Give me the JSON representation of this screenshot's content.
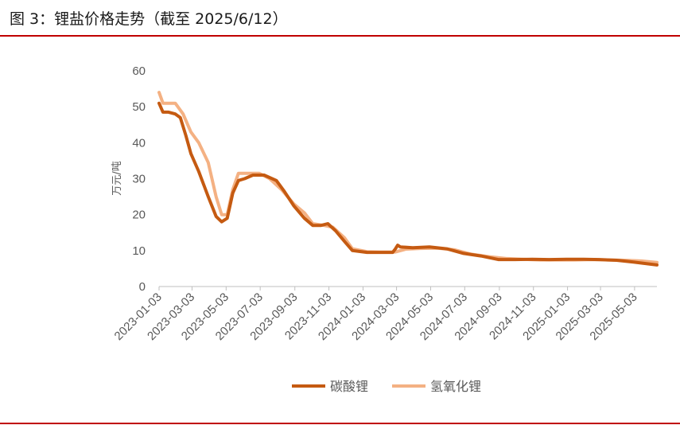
{
  "title": "图 3：锂盐价格走势（截至 2025/6/12）",
  "colors": {
    "accent_rule": "#c00000",
    "lithium_carbonate": "#c55a11",
    "lithium_hydroxide": "#f4b183"
  },
  "chart_data": {
    "type": "line",
    "title": "",
    "xlabel": "",
    "ylabel": "万元/吨",
    "ylim": [
      0,
      60
    ],
    "yticks": [
      0,
      10,
      20,
      30,
      40,
      50,
      60
    ],
    "x_tick_labels": [
      "2023-01-03",
      "2023-03-03",
      "2023-05-03",
      "2023-07-03",
      "2023-09-03",
      "2023-11-03",
      "2024-01-03",
      "2024-03-03",
      "2024-05-03",
      "2024-07-03",
      "2024-09-03",
      "2024-11-03",
      "2025-01-03",
      "2025-03-03",
      "2025-05-03"
    ],
    "x_range": [
      "2023-01-03",
      "2025-06-12"
    ],
    "grid": false,
    "legend_position": "bottom",
    "series": [
      {
        "name": "碳酸锂",
        "color": "#c55a11",
        "points": [
          [
            "2023-01-03",
            51.0
          ],
          [
            "2023-01-10",
            48.5
          ],
          [
            "2023-01-20",
            48.5
          ],
          [
            "2023-02-01",
            48.0
          ],
          [
            "2023-02-10",
            47.0
          ],
          [
            "2023-02-20",
            42.0
          ],
          [
            "2023-03-01",
            37.0
          ],
          [
            "2023-03-15",
            32.0
          ],
          [
            "2023-04-01",
            25.0
          ],
          [
            "2023-04-15",
            19.5
          ],
          [
            "2023-04-25",
            18.0
          ],
          [
            "2023-05-05",
            19.0
          ],
          [
            "2023-05-15",
            26.0
          ],
          [
            "2023-05-25",
            29.5
          ],
          [
            "2023-06-05",
            30.0
          ],
          [
            "2023-06-20",
            31.0
          ],
          [
            "2023-07-10",
            31.0
          ],
          [
            "2023-08-01",
            29.5
          ],
          [
            "2023-08-15",
            26.5
          ],
          [
            "2023-09-01",
            22.5
          ],
          [
            "2023-09-20",
            19.0
          ],
          [
            "2023-10-05",
            17.0
          ],
          [
            "2023-10-20",
            17.0
          ],
          [
            "2023-11-01",
            17.5
          ],
          [
            "2023-11-15",
            15.5
          ],
          [
            "2023-12-01",
            12.5
          ],
          [
            "2023-12-15",
            10.0
          ],
          [
            "2024-01-10",
            9.5
          ],
          [
            "2024-02-01",
            9.5
          ],
          [
            "2024-02-25",
            9.5
          ],
          [
            "2024-03-01",
            10.5
          ],
          [
            "2024-03-05",
            11.5
          ],
          [
            "2024-03-10",
            11.0
          ],
          [
            "2024-04-01",
            10.8
          ],
          [
            "2024-05-01",
            11.0
          ],
          [
            "2024-06-01",
            10.5
          ],
          [
            "2024-07-01",
            9.2
          ],
          [
            "2024-08-01",
            8.5
          ],
          [
            "2024-09-01",
            7.5
          ],
          [
            "2024-10-01",
            7.5
          ],
          [
            "2024-11-01",
            7.6
          ],
          [
            "2024-12-01",
            7.5
          ],
          [
            "2025-01-01",
            7.6
          ],
          [
            "2025-02-01",
            7.6
          ],
          [
            "2025-03-01",
            7.5
          ],
          [
            "2025-04-01",
            7.3
          ],
          [
            "2025-05-01",
            6.8
          ],
          [
            "2025-06-12",
            6.0
          ]
        ]
      },
      {
        "name": "氢氧化锂",
        "color": "#f4b183",
        "points": [
          [
            "2023-01-03",
            54.0
          ],
          [
            "2023-01-10",
            51.0
          ],
          [
            "2023-02-01",
            51.0
          ],
          [
            "2023-02-15",
            48.0
          ],
          [
            "2023-03-01",
            43.0
          ],
          [
            "2023-03-15",
            40.0
          ],
          [
            "2023-04-01",
            34.5
          ],
          [
            "2023-04-15",
            25.0
          ],
          [
            "2023-04-25",
            20.0
          ],
          [
            "2023-05-05",
            20.0
          ],
          [
            "2023-05-15",
            27.0
          ],
          [
            "2023-05-25",
            31.5
          ],
          [
            "2023-06-10",
            31.5
          ],
          [
            "2023-07-01",
            31.5
          ],
          [
            "2023-07-20",
            30.0
          ],
          [
            "2023-08-10",
            27.0
          ],
          [
            "2023-09-01",
            23.0
          ],
          [
            "2023-09-20",
            20.5
          ],
          [
            "2023-10-05",
            17.5
          ],
          [
            "2023-10-25",
            17.0
          ],
          [
            "2023-11-10",
            16.5
          ],
          [
            "2023-12-01",
            13.5
          ],
          [
            "2023-12-15",
            10.5
          ],
          [
            "2024-01-10",
            9.7
          ],
          [
            "2024-02-01",
            9.6
          ],
          [
            "2024-03-01",
            9.6
          ],
          [
            "2024-03-20",
            10.4
          ],
          [
            "2024-04-15",
            10.6
          ],
          [
            "2024-05-15",
            10.7
          ],
          [
            "2024-06-15",
            10.2
          ],
          [
            "2024-07-15",
            9.0
          ],
          [
            "2024-08-15",
            8.3
          ],
          [
            "2024-09-15",
            7.8
          ],
          [
            "2024-10-15",
            7.6
          ],
          [
            "2024-11-15",
            7.4
          ],
          [
            "2024-12-15",
            7.4
          ],
          [
            "2025-01-15",
            7.4
          ],
          [
            "2025-02-15",
            7.5
          ],
          [
            "2025-03-15",
            7.4
          ],
          [
            "2025-04-15",
            7.3
          ],
          [
            "2025-05-15",
            7.1
          ],
          [
            "2025-06-12",
            6.7
          ]
        ]
      }
    ]
  }
}
